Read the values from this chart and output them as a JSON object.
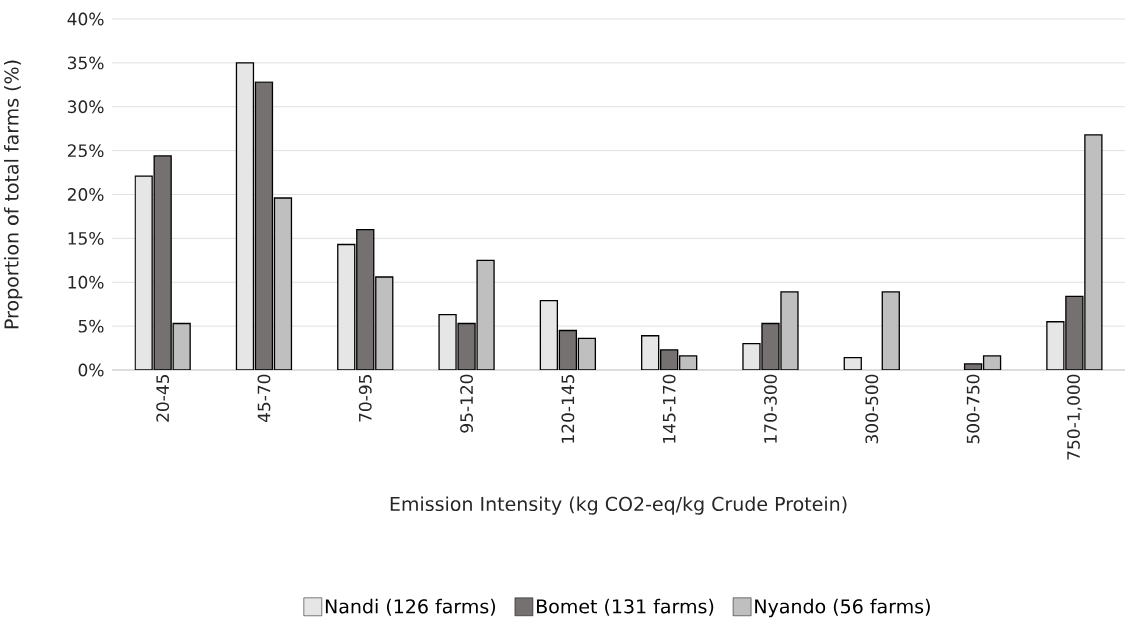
{
  "chart_data": {
    "type": "bar",
    "xlabel": "Emission Intensity (kg CO2-eq/kg Crude Protein)",
    "ylabel": "Proportion of total farms (%)",
    "categories": [
      "20-45",
      "45-70",
      "70-95",
      "95-120",
      "120-145",
      "145-170",
      "170-300",
      "300-500",
      "500-750",
      "750-1,000"
    ],
    "series": [
      {
        "name": "Nandi (126 farms)",
        "color": "#e7e6e6",
        "values": [
          22.1,
          35.0,
          14.3,
          6.3,
          7.9,
          3.9,
          3.0,
          1.4,
          null,
          5.5
        ]
      },
      {
        "name": "Bomet (131 farms)",
        "color": "#767171",
        "values": [
          24.4,
          32.8,
          16.0,
          5.3,
          4.5,
          2.3,
          5.3,
          null,
          0.7,
          8.4
        ]
      },
      {
        "name": "Nyando (56 farms)",
        "color": "#bfbfbf",
        "values": [
          5.3,
          19.6,
          10.6,
          12.5,
          3.6,
          1.6,
          8.9,
          8.9,
          1.6,
          26.8
        ]
      }
    ],
    "ylim": [
      0,
      40
    ],
    "yticks": [
      {
        "value": 0,
        "label": "0%"
      },
      {
        "value": 5,
        "label": "5%"
      },
      {
        "value": 10,
        "label": "10%"
      },
      {
        "value": 15,
        "label": "15%"
      },
      {
        "value": 20,
        "label": "20%"
      },
      {
        "value": 25,
        "label": "25%"
      },
      {
        "value": 30,
        "label": "30%"
      },
      {
        "value": 35,
        "label": "35%"
      },
      {
        "value": 40,
        "label": "40%"
      }
    ],
    "grid": "y",
    "legend": "bottom"
  }
}
